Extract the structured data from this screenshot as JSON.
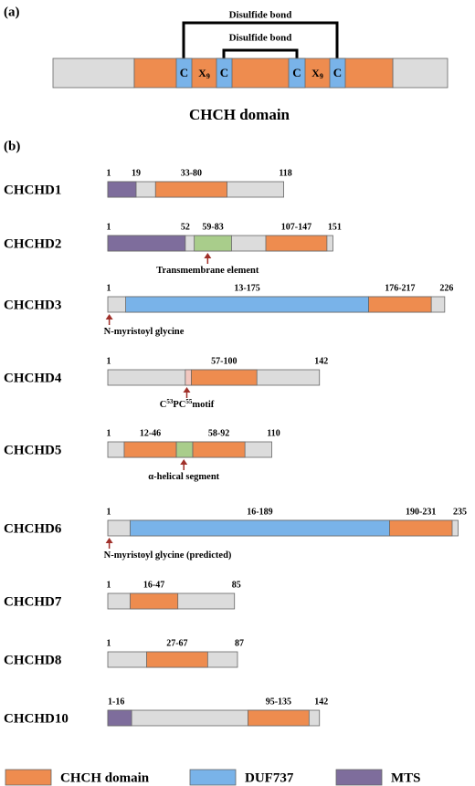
{
  "panel_a": {
    "label": "(a)",
    "outer_bond": "Disulfide bond",
    "inner_bond": "Disulfide bond",
    "boxes": [
      {
        "text": "C"
      },
      {
        "text": "X",
        "sub": "9"
      },
      {
        "text": "C"
      },
      {
        "text": "C"
      },
      {
        "text": "X",
        "sub": "9"
      },
      {
        "text": "C"
      }
    ],
    "caption": "CHCH domain"
  },
  "panel_b": {
    "label": "(b)",
    "colors": {
      "chch": "#ee8c4f",
      "duf": "#79b3e9",
      "mts": "#7e6d9c",
      "tm": "#a9cd8b",
      "motif": "#f2c7c0",
      "body": "#dcdcdc"
    },
    "proteins": [
      {
        "name": "CHCHD1",
        "start_label": "1",
        "length": 118,
        "segments": [
          {
            "start": 1,
            "end": 19,
            "kind": "mts",
            "label": "19"
          },
          {
            "start": 33,
            "end": 80,
            "kind": "chch",
            "label": "33-80"
          }
        ]
      },
      {
        "name": "CHCHD2",
        "start_label": "1",
        "length": 151,
        "segments": [
          {
            "start": 1,
            "end": 52,
            "kind": "mts",
            "label": "52"
          },
          {
            "start": 59,
            "end": 83,
            "kind": "tm",
            "label": "59-83"
          },
          {
            "start": 107,
            "end": 147,
            "kind": "chch",
            "label": "107-147"
          }
        ],
        "note": {
          "text": "Transmembrane element",
          "at": 68
        }
      },
      {
        "name": "CHCHD3",
        "start_label": "1",
        "length": 226,
        "segments": [
          {
            "start": 13,
            "end": 175,
            "kind": "duf",
            "label": "13-175"
          },
          {
            "start": 176,
            "end": 217,
            "kind": "chch",
            "label": "176-217"
          }
        ],
        "note": {
          "text": "N-myristoyl glycine",
          "at": 2
        }
      },
      {
        "name": "CHCHD4",
        "start_label": "1",
        "length": 142,
        "segments": [
          {
            "start": 53,
            "end": 56,
            "kind": "motif"
          },
          {
            "start": 57,
            "end": 100,
            "kind": "chch",
            "label": "57-100"
          }
        ],
        "note": {
          "parts": [
            "C",
            "53",
            "PC",
            "55",
            "motif"
          ],
          "at": 54
        }
      },
      {
        "name": "CHCHD5",
        "start_label": "1",
        "length": 110,
        "segments": [
          {
            "start": 12,
            "end": 46,
            "kind": "chch",
            "label": "12-46"
          },
          {
            "start": 47,
            "end": 57,
            "kind": "tm"
          },
          {
            "start": 58,
            "end": 92,
            "kind": "chch",
            "label": "58-92"
          }
        ],
        "note": {
          "text": "α-helical segment",
          "at": 52
        }
      },
      {
        "name": "CHCHD6",
        "start_label": "1",
        "length": 235,
        "segments": [
          {
            "start": 16,
            "end": 189,
            "kind": "duf",
            "label": "16-189"
          },
          {
            "start": 190,
            "end": 231,
            "kind": "chch",
            "label": "190-231"
          }
        ],
        "note": {
          "text": "N-myristoyl glycine (predicted)",
          "at": 2
        }
      },
      {
        "name": "CHCHD7",
        "start_label": "1",
        "length": 85,
        "segments": [
          {
            "start": 16,
            "end": 47,
            "kind": "chch",
            "label": "16-47"
          }
        ]
      },
      {
        "name": "CHCHD8",
        "start_label": "1",
        "length": 87,
        "segments": [
          {
            "start": 27,
            "end": 67,
            "kind": "chch",
            "label": "27-67"
          }
        ]
      },
      {
        "name": "CHCHD10",
        "length": 142,
        "segments": [
          {
            "start": 1,
            "end": 16,
            "kind": "mts",
            "label": "1-16"
          },
          {
            "start": 95,
            "end": 135,
            "kind": "chch",
            "label": "95-135"
          }
        ]
      }
    ]
  },
  "legend": [
    {
      "label": "CHCH domain",
      "kind": "chch"
    },
    {
      "label": "DUF737",
      "kind": "duf"
    },
    {
      "label": "MTS",
      "kind": "mts"
    }
  ]
}
